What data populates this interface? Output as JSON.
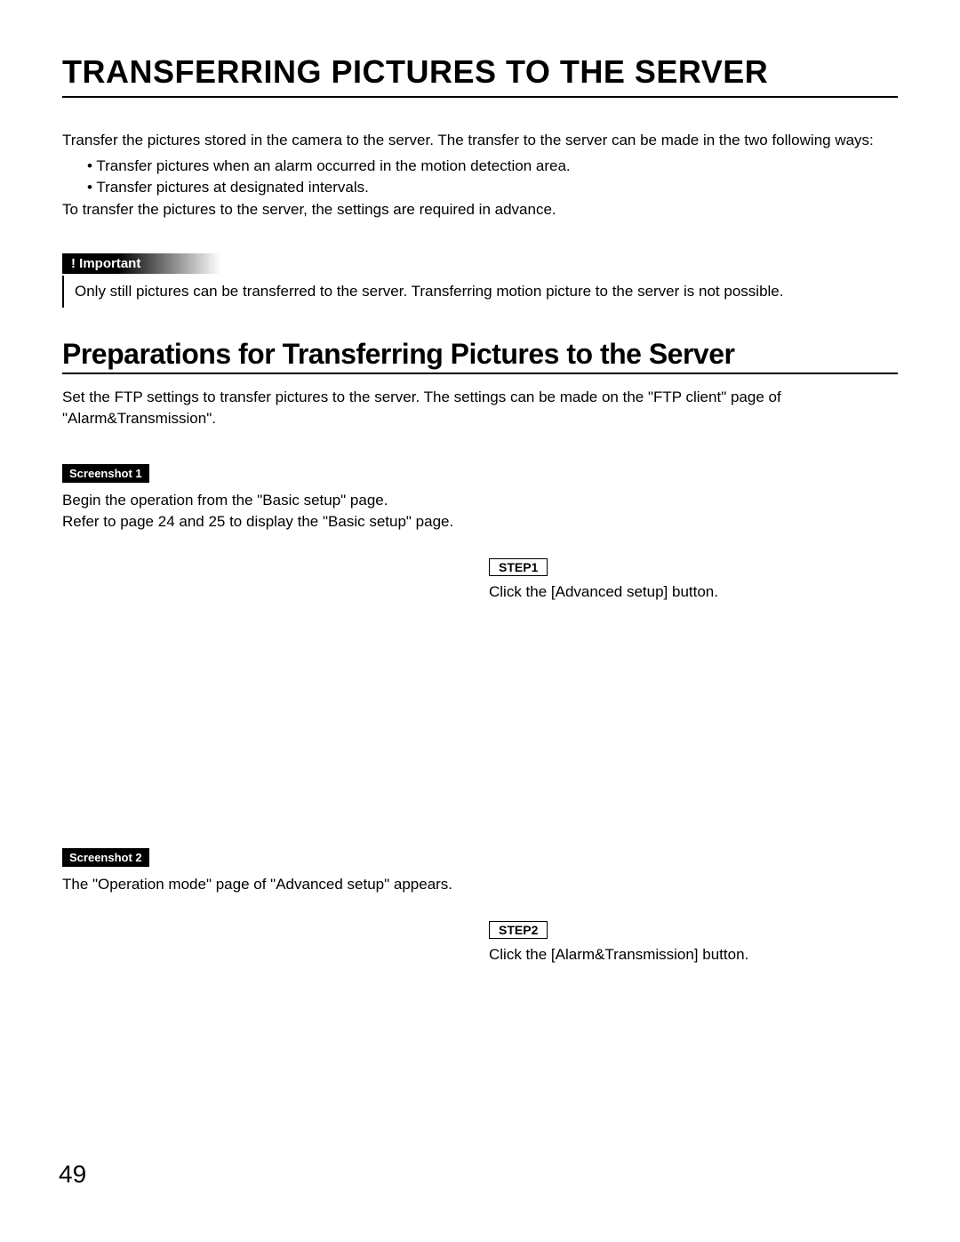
{
  "title": "TRANSFERRING PICTURES TO THE SERVER",
  "intro1": "Transfer the pictures stored in the camera to the server. The transfer to the server can be made in the two following ways:",
  "bullet1": "• Transfer pictures when an alarm occurred in the motion detection area.",
  "bullet2": "• Transfer pictures at designated intervals.",
  "intro2": "To transfer the pictures to the server, the settings are required in advance.",
  "important": {
    "label": "! Important",
    "body": "Only still pictures can be transferred to the server. Transferring motion picture to the server is not possible."
  },
  "section": {
    "title": "Preparations for Transferring Pictures to the Server",
    "intro": "Set the FTP settings to transfer pictures to the server. The settings can be made on the \"FTP client\" page of \"Alarm&Transmission\"."
  },
  "screenshot1": {
    "badge": "Screenshot 1",
    "line1": "Begin the operation from the \"Basic setup\" page.",
    "line2": "Refer to page 24 and 25 to display the \"Basic setup\" page."
  },
  "step1": {
    "badge": "STEP1",
    "text": "Click the [Advanced setup] button."
  },
  "screenshot2": {
    "badge": "Screenshot 2",
    "line1": "The \"Operation mode\" page of \"Advanced setup\" appears."
  },
  "step2": {
    "badge": "STEP2",
    "text": "Click the [Alarm&Transmission] button."
  },
  "page_number": "49"
}
